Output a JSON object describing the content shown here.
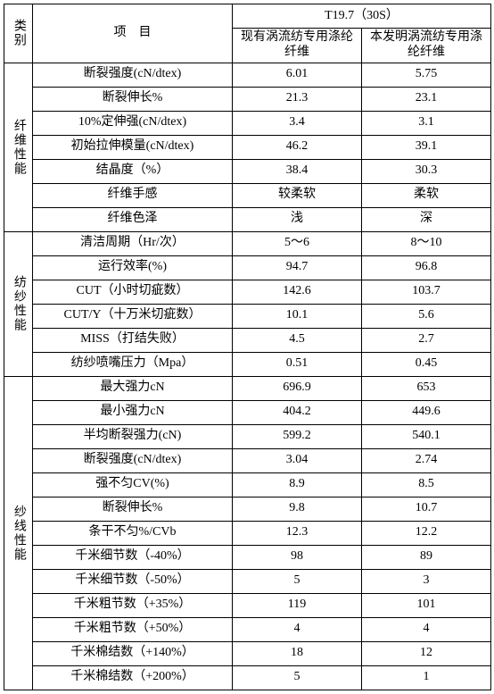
{
  "header": {
    "cat": "类别",
    "item": "项　目",
    "top": "T19.7（30S）",
    "c1": "现有涡流纺专用涤纶纤维",
    "c2": "本发明涡流纺专用涤纶纤维"
  },
  "groups": [
    {
      "cat": "纤维性能",
      "rows": [
        {
          "item": "断裂强度(cN/dtex)",
          "c1": "6.01",
          "c2": "5.75"
        },
        {
          "item": "断裂伸长%",
          "c1": "21.3",
          "c2": "23.1"
        },
        {
          "item": "10%定伸强(cN/dtex)",
          "c1": "3.4",
          "c2": "3.1"
        },
        {
          "item": "初始拉伸模量(cN/dtex)",
          "c1": "46.2",
          "c2": "39.1"
        },
        {
          "item": "结晶度（%）",
          "c1": "38.4",
          "c2": "30.3"
        },
        {
          "item": "纤维手感",
          "c1": "较柔软",
          "c2": "柔软"
        },
        {
          "item": "纤维色泽",
          "c1": "浅",
          "c2": "深"
        }
      ]
    },
    {
      "cat": "纺纱性能",
      "rows": [
        {
          "item": "清洁周期（Hr/次）",
          "c1": "5～6",
          "c2": "8～10"
        },
        {
          "item": "运行效率(%)",
          "c1": "94.7",
          "c2": "96.8"
        },
        {
          "item": "CUT（小时切疵数）",
          "c1": "142.6",
          "c2": "103.7"
        },
        {
          "item": "CUT/Y（十万米切疵数）",
          "c1": "10.1",
          "c2": "5.6"
        },
        {
          "item": "MISS（打结失败）",
          "c1": "4.5",
          "c2": "2.7"
        },
        {
          "item": "纺纱喷嘴压力（Mpa）",
          "c1": "0.51",
          "c2": "0.45"
        }
      ]
    },
    {
      "cat": "纱线性能",
      "rows": [
        {
          "item": "最大强力cN",
          "c1": "696.9",
          "c2": "653"
        },
        {
          "item": "最小强力cN",
          "c1": "404.2",
          "c2": "449.6"
        },
        {
          "item": "半均断裂强力(cN)",
          "c1": "599.2",
          "c2": "540.1"
        },
        {
          "item": "断裂强度(cN/dtex)",
          "c1": "3.04",
          "c2": "2.74"
        },
        {
          "item": "强不匀CV(%)",
          "c1": "8.9",
          "c2": "8.5"
        },
        {
          "item": "断裂伸长%",
          "c1": "9.8",
          "c2": "10.7"
        },
        {
          "item": "条干不匀%/CVb",
          "c1": "12.3",
          "c2": "12.2"
        },
        {
          "item": "千米细节数（-40%）",
          "c1": "98",
          "c2": "89"
        },
        {
          "item": "千米细节数（-50%）",
          "c1": "5",
          "c2": "3"
        },
        {
          "item": "千米粗节数（+35%）",
          "c1": "119",
          "c2": "101"
        },
        {
          "item": "千米粗节数（+50%）",
          "c1": "4",
          "c2": "4"
        },
        {
          "item": "千米棉结数（+140%）",
          "c1": "18",
          "c2": "12"
        },
        {
          "item": "千米棉结数（+200%）",
          "c1": "5",
          "c2": "1"
        }
      ]
    }
  ]
}
